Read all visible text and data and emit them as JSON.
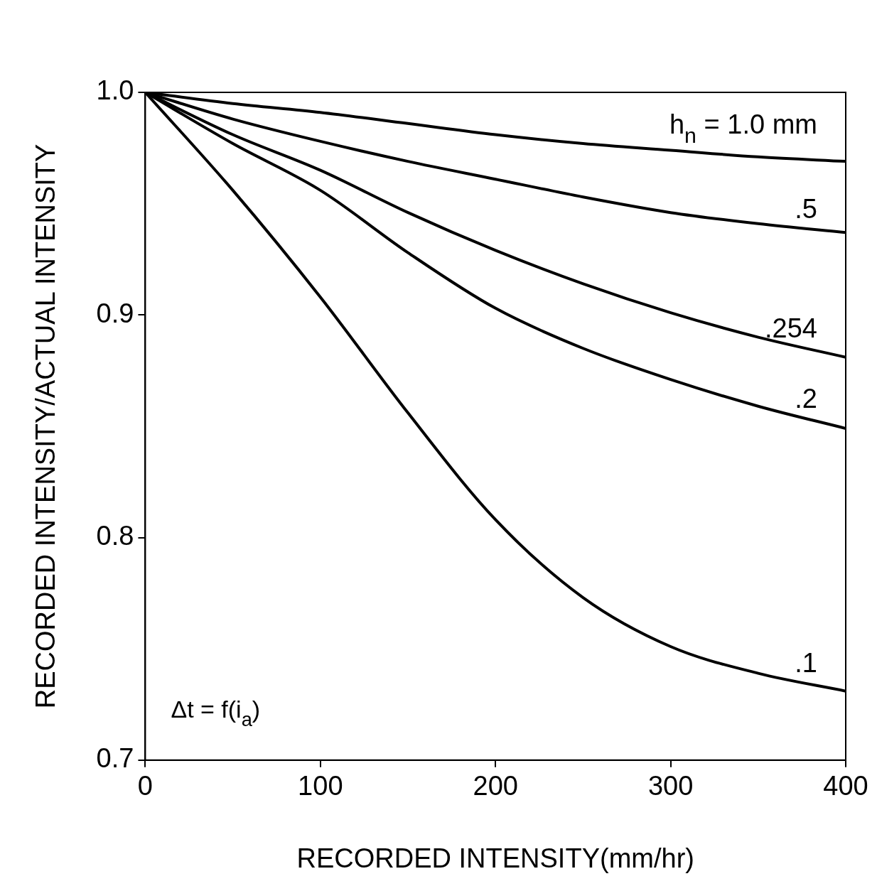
{
  "chart_data": {
    "type": "line",
    "xlabel": "RECORDED INTENSITY(mm/hr)",
    "ylabel": "RECORDED INTENSITY/ACTUAL INTENSITY",
    "x": [
      0,
      50,
      100,
      150,
      200,
      250,
      300,
      350,
      400
    ],
    "series": [
      {
        "name": "h$_{n}$ = 1.0 mm",
        "color": "#000000",
        "values": [
          1.0,
          0.995,
          0.991,
          0.986,
          0.981,
          0.977,
          0.974,
          0.971,
          0.969
        ]
      },
      {
        "name": ".5",
        "color": "#000000",
        "values": [
          1.0,
          0.988,
          0.978,
          0.969,
          0.961,
          0.953,
          0.946,
          0.941,
          0.937
        ]
      },
      {
        "name": ".254",
        "color": "#000000",
        "values": [
          1.0,
          0.981,
          0.965,
          0.946,
          0.929,
          0.914,
          0.901,
          0.89,
          0.881
        ]
      },
      {
        "name": ".2",
        "color": "#000000",
        "values": [
          1.0,
          0.977,
          0.956,
          0.928,
          0.903,
          0.885,
          0.871,
          0.859,
          0.849
        ]
      },
      {
        "name": ".1",
        "color": "#000000",
        "values": [
          1.0,
          0.956,
          0.908,
          0.856,
          0.808,
          0.773,
          0.751,
          0.739,
          0.731
        ]
      }
    ],
    "xlim": [
      0,
      400
    ],
    "xticks": [
      0,
      100,
      200,
      300,
      400
    ],
    "ylim": [
      0.7,
      1.0
    ],
    "yticks": [
      {
        "value": 0.7,
        "label": "0.7"
      },
      {
        "value": 0.8,
        "label": "0.8"
      },
      {
        "value": 0.9,
        "label": "0.9"
      },
      {
        "value": 1.0,
        "label": "1.0"
      }
    ],
    "annotations": [
      "Δt = f(i$_{a}$)"
    ],
    "grid": false,
    "legend": false,
    "marker": "none",
    "line_style": "solid"
  }
}
